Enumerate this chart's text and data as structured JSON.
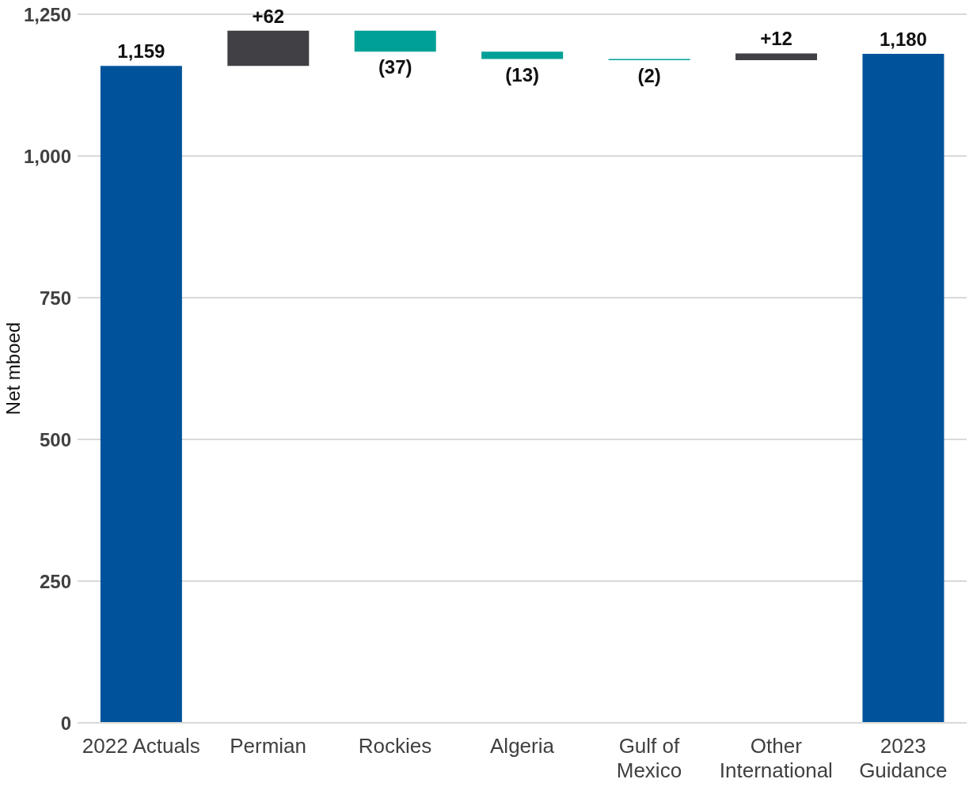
{
  "chart_data": {
    "type": "bar",
    "ylabel": "Net mboed",
    "categories": [
      "2022 Actuals",
      "Permian",
      "Rockies",
      "Algeria",
      "Gulf of Mexico",
      "Other International",
      "2023 Guidance"
    ],
    "values": [
      1159,
      62,
      -37,
      -13,
      -2,
      12,
      1180
    ],
    "base": [
      0,
      1159,
      1221,
      1184,
      1171,
      1169,
      0
    ],
    "colors": [
      "#00529b",
      "#404045",
      "#00a096",
      "#00a096",
      "#00a096",
      "#404045",
      "#00529b"
    ],
    "value_labels": [
      "1,159",
      "+62",
      "(37)",
      "(13)",
      "(2)",
      "+12",
      "1,180"
    ],
    "ylim": [
      0,
      1250
    ],
    "yticks": [
      {
        "value": 0,
        "label": "0"
      },
      {
        "value": 250,
        "label": "250"
      },
      {
        "value": 500,
        "label": "500"
      },
      {
        "value": 750,
        "label": "750"
      },
      {
        "value": 1000,
        "label": "1,000"
      },
      {
        "value": 1250,
        "label": "1,250"
      }
    ],
    "grid": "y",
    "legend": false
  }
}
